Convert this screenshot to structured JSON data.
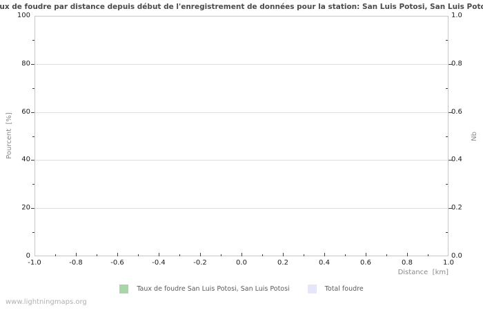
{
  "title": "Taux de foudre par distance depuis début de l'enregistrement de données pour la station: San Luis Potosi, San Luis Potosi",
  "watermark": "www.lightningmaps.org",
  "axes": {
    "x": {
      "label": "Distance  [km]",
      "min": -1.0,
      "max": 1.0,
      "major_ticks": [
        "-1.0",
        "-0.8",
        "-0.6",
        "-0.4",
        "-0.2",
        "0.0",
        "0.2",
        "0.4",
        "0.6",
        "0.8",
        "1.0"
      ],
      "minor_step": 0.1
    },
    "y_left": {
      "label": "Pourcent  [%]",
      "min": 0,
      "max": 100,
      "major_ticks": [
        "0",
        "20",
        "40",
        "60",
        "80",
        "100"
      ],
      "minor_step": 10
    },
    "y_right": {
      "label": "Nb",
      "min": 0.0,
      "max": 1.0,
      "major_ticks": [
        "0.0",
        "0.2",
        "0.4",
        "0.6",
        "0.8",
        "1.0"
      ],
      "minor_step": 0.1
    }
  },
  "legend": [
    {
      "label": "Taux de foudre San Luis Potosi, San Luis Potosi",
      "color": "#a7d7a7"
    },
    {
      "label": "Total foudre",
      "color": "#e6e6fa"
    }
  ],
  "colors": {
    "border": "#c6c6c6",
    "grid": "#dedede",
    "tick": "#3c3c3c",
    "title": "#4a4a4a",
    "tick_label": "#1a1a1a",
    "axis_label": "#8a8a8a",
    "legend_text": "#5a5a5a",
    "watermark": "#b0b0b0"
  },
  "chart_data": {
    "type": "bar",
    "title": "Taux de foudre par distance depuis début de l'enregistrement de données pour la station: San Luis Potosi, San Luis Potosi",
    "xlabel": "Distance  [km]",
    "ylabel": "Pourcent  [%]",
    "ylabel_right": "Nb",
    "xlim": [
      -1.0,
      1.0
    ],
    "ylim": [
      0,
      100
    ],
    "ylim_right": [
      0.0,
      1.0
    ],
    "x_major_ticks": [
      -1.0,
      -0.8,
      -0.6,
      -0.4,
      -0.2,
      0.0,
      0.2,
      0.4,
      0.6,
      0.8,
      1.0
    ],
    "grid": "horizontal-major-only",
    "legend_position": "bottom-center",
    "series": [
      {
        "name": "Taux de foudre San Luis Potosi, San Luis Potosi",
        "color": "#a7d7a7",
        "axis": "left",
        "x": [],
        "values": []
      },
      {
        "name": "Total foudre",
        "color": "#e6e6fa",
        "axis": "right",
        "x": [],
        "values": []
      }
    ]
  }
}
